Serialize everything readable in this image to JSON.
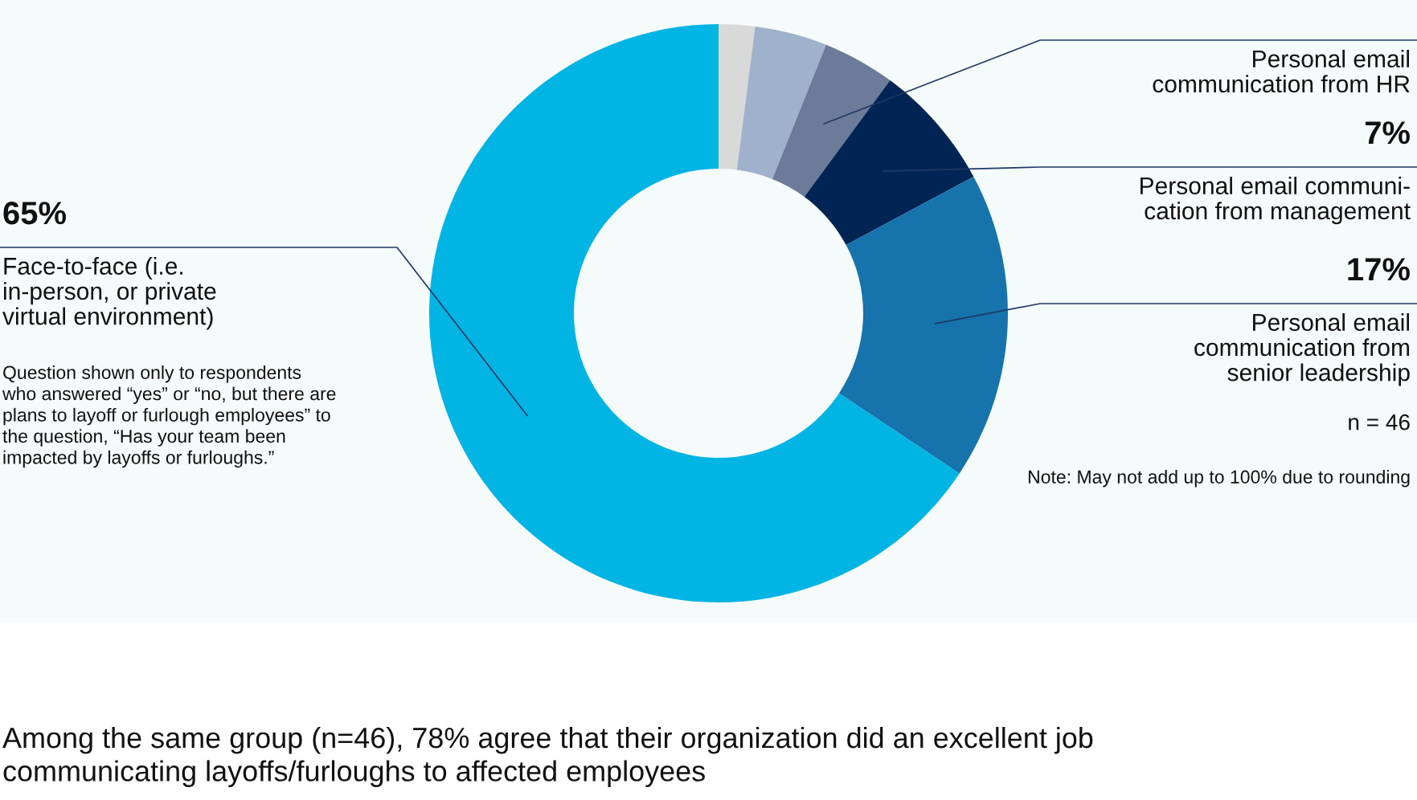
{
  "chart_data": {
    "type": "donut",
    "categories": [
      null,
      null,
      "Personal email\ncommunication from HR",
      "Personal email communi-\ncation from management",
      "Personal email\ncommunication from\nsenior leadership",
      "Face-to-face (i.e.\nin-person, or private\nvirtual environment)"
    ],
    "values": [
      2,
      4,
      4,
      7,
      17,
      65
    ],
    "colors": [
      "#d9d9d9",
      "#a0b1cb",
      "#6b7b99",
      "#002554",
      "#1673ac",
      "#00b4e4"
    ],
    "value_labels": [
      null,
      null,
      null,
      "7%",
      "17%",
      "65%"
    ],
    "annotations": [
      "Question shown only to respondents\nwho answered “yes” or “no, but there are\nplans to layoff or furlough employees” to\nthe question, “Has your team been\nimpacted by layoffs or furloughs.”",
      "n = 46",
      "Note: May not add up to 100% due to rounding",
      "Among the same group (n=46), 78% agree that their organization did an excellent job\ncommunicating layoffs/furloughs to affected employees"
    ],
    "legend": false
  }
}
